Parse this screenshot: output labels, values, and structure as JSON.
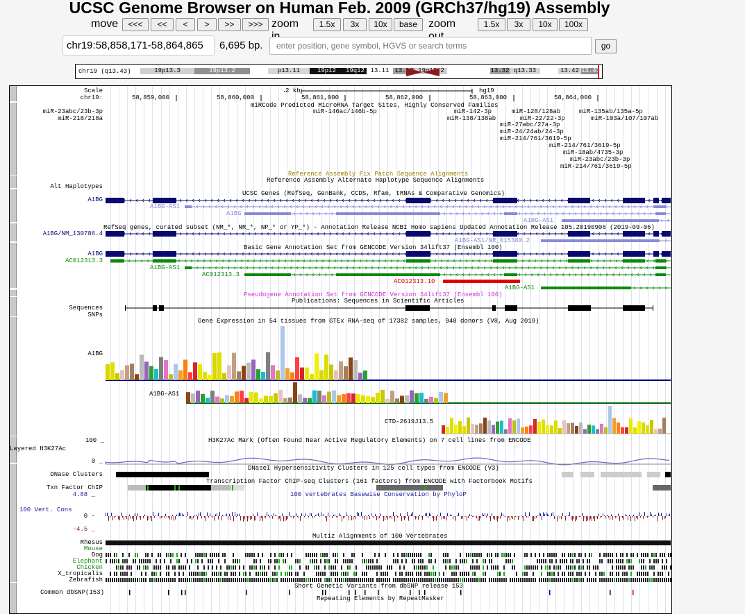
{
  "title": "UCSC Genome Browser on Human Feb. 2009 (GRCh37/hg19) Assembly",
  "nav": {
    "move_label": "move",
    "move_buttons": [
      "<<<",
      "<<",
      "<",
      ">",
      ">>",
      ">>>"
    ],
    "zoom_in_label": "zoom in",
    "zoom_in_buttons": [
      "1.5x",
      "3x",
      "10x",
      "base"
    ],
    "zoom_out_label": "zoom out",
    "zoom_out_buttons": [
      "1.5x",
      "3x",
      "10x",
      "100x"
    ]
  },
  "position": {
    "value": "chr19:58,858,171-58,864,865",
    "size": "6,695 bp."
  },
  "search": {
    "placeholder": "enter position, gene symbol, HGVS or search terms",
    "go_label": "go"
  },
  "ideogram": {
    "chrom_label": "chr19 (q13.43)",
    "bands": [
      {
        "label": "19p13.3",
        "color": "#d0d0d0"
      },
      {
        "label": "19p13.2",
        "color": "#909090"
      },
      {
        "label": "",
        "color": "#ffffff"
      },
      {
        "label": "p13.11",
        "color": "#d6d6d6"
      },
      {
        "label": "19p12",
        "color": "#111111"
      },
      {
        "label": "19q12",
        "color": "#111111"
      },
      {
        "label": "13.11",
        "color": "#ffffff"
      },
      {
        "label": "13.12",
        "color": "#a0a0a0"
      },
      {
        "label": "19q13.2",
        "color": "#d0d0d0"
      },
      {
        "label": "",
        "color": "#ffffff"
      },
      {
        "label": "13.32",
        "color": "#a0a0a0"
      },
      {
        "label": "q13.33",
        "color": "#d6d6d6"
      },
      {
        "label": "",
        "color": "#ffffff"
      },
      {
        "label": "13.42",
        "color": "#d6d6d6"
      },
      {
        "label": "13.43",
        "color": "#909090"
      }
    ],
    "centromere_color": "#8b1a1a"
  },
  "ruler": {
    "scale_label": "Scale",
    "chrom_label": "chr19:",
    "scale_text": "2 kb",
    "assembly": "hg19",
    "ticks": [
      "58,859,000",
      "58,860,000",
      "58,861,000",
      "58,862,000",
      "58,863,000",
      "58,864,000"
    ]
  },
  "tracks": {
    "mircode": {
      "title": "miRCode Predicted MicroRNA Target Sites, Highly Conserved Families",
      "left_labels": [
        "miR-23abc/23b-3p",
        "miR-218/218a"
      ],
      "items": [
        "miR-146ac/146b-5p",
        "miR-142-3p",
        "miR-128/128ab",
        "miR-135ab/135a-5p",
        "miR-138/138ab",
        "miR-22/22-3p",
        "miR-103a/107/107ab",
        "miR-27abc/27a-3p",
        "miR-24/24ab/24-3p",
        "miR-214/761/3619-5p",
        "miR-214/761/3619-5p",
        "miR-18ab/4735-3p",
        "miR-23abc/23b-3p",
        "miR-214/761/3619-5p"
      ]
    },
    "fix_patch": {
      "title": "Reference Assembly Fix Patch Sequence Alignments",
      "color": "#a08000"
    },
    "alt_haplo": {
      "title": "Reference Assembly Alternate Haplotype Sequence Alignments",
      "left_label": "Alt Haplotypes"
    },
    "ucsc_genes": {
      "title": "UCSC Genes (RefSeq, GenBank, CCDS, Rfam, tRNAs & Comparative Genomics)",
      "left_label": "A1BG",
      "items": [
        "A1BG-AS1",
        "A1BG",
        "A1BG-AS1"
      ]
    },
    "refseq": {
      "title": "RefSeq genes, curated subset (NM_*, NR_*, NP_* or YP_*) - Annotation Release NCBI Homo sapiens Updated Annotation Release 105.20190906 (2019-09-06)",
      "left_label": "A1BG/NM_130786.4",
      "items": [
        "A1BG-AS1/NR_015380.2"
      ]
    },
    "gencode": {
      "title": "Basic Gene Annotation Set from GENCODE Version 34lift37 (Ensembl 100)",
      "left_labels": [
        "A1BG",
        "AC012313.3"
      ],
      "items": [
        "A1BG-AS1",
        "AC012313.3",
        "AC012313.10",
        "A1BG-AS1"
      ]
    },
    "pseudogene": {
      "title": "Pseudogene Annotation Set from GENCODE Version 34lift37 (Ensembl 100)",
      "color": "#cc33cc"
    },
    "publications": {
      "title": "Publications: Sequences in Scientific Articles",
      "left_labels": [
        "Sequences",
        "SNPs"
      ]
    },
    "gtex": {
      "title": "Gene Expression in 54 tissues from GTEx RNA-seq of 17382 samples, 948 donors (V8, Aug 2019)",
      "genes": [
        "A1BG",
        "A1BG-AS1",
        "CTD-2619J13.5"
      ]
    },
    "h3k27ac": {
      "title": "H3K27Ac Mark (Often Found Near Active Regulatory Elements) on 7 cell lines from ENCODE",
      "left_label": "Layered H3K27Ac",
      "ymax": "100 _",
      "ymin": "0 _"
    },
    "dnase": {
      "title": "DNaseI Hypersensitivity Clusters in 125 cell types from ENCODE (V3)",
      "left_label": "DNase Clusters"
    },
    "tfbs": {
      "title": "Transcription Factor ChIP-seq Clusters (161 factors) from ENCODE with Factorbook Motifs",
      "left_label": "Txn Factor ChIP"
    },
    "conservation": {
      "title": "100 vertebrates Basewise Conservation by PhyloP",
      "left_label": "100 Vert. Cons",
      "ymax": "4.88 _",
      "zero": "0 -",
      "ymin": "-4.5 _"
    },
    "multiz": {
      "title": "Multiz Alignments of 100 Vertebrates",
      "species": [
        "Rhesus",
        "Mouse",
        "Dog",
        "Elephant",
        "Chicken",
        "X_tropicalis",
        "Zebrafish"
      ]
    },
    "dbsnp": {
      "title": "Short Genetic Variants from dbSNP release 153",
      "left_label": "Common dbSNP(153)"
    },
    "repeatmasker": {
      "title": "Repeating Elements by RepeatMasker"
    }
  },
  "colors": {
    "ucsc_gene": "#0a0a6e",
    "ucsc_light": "#8a8ad8",
    "gencode_green": "#0a8a0a",
    "gencode_red": "#e00000",
    "phylop_pos": "#1a1a9a",
    "phylop_neg": "#8a1a1a",
    "gtex_axis": "#000080",
    "gtex_axis2": "#006600"
  }
}
